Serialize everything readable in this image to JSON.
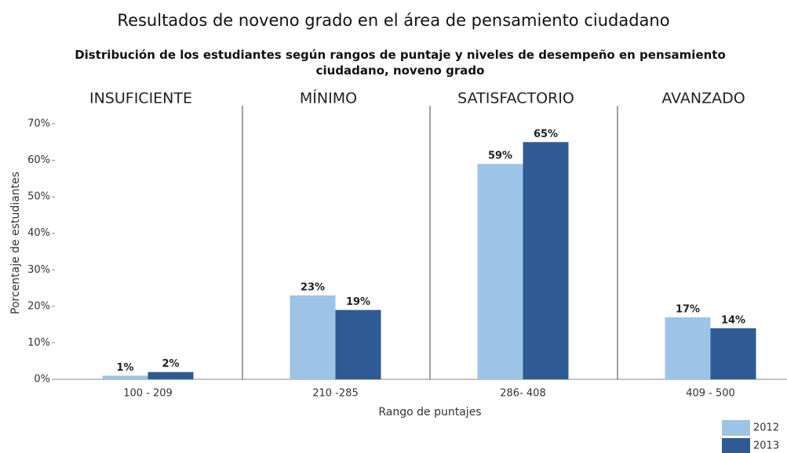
{
  "chart_data": {
    "type": "bar",
    "title": "Resultados de noveno grado en el área de pensamiento ciudadano",
    "subtitle": "Distribución de los estudiantes según rangos de puntaje y niveles de desempeño en pensamiento ciudadano, noveno grado",
    "levels": [
      "INSUFICIENTE",
      "MÍNIMO",
      "SATISFACTORIO",
      "AVANZADO"
    ],
    "x_label": "Rango de puntajes",
    "y_label": "Porcentaje de estudiantes",
    "categories": [
      "100 - 209",
      "210 -285",
      "286- 408",
      "409 - 500"
    ],
    "series": [
      {
        "name": "2012",
        "color": "#9dc3e6",
        "values": [
          1,
          23,
          59,
          17
        ],
        "value_labels": [
          "1%",
          "23%",
          "59%",
          "17%"
        ]
      },
      {
        "name": "2013",
        "color": "#2f5b95",
        "values": [
          2,
          19,
          65,
          14
        ],
        "value_labels": [
          "2%",
          "19%",
          "65%",
          "14%"
        ]
      }
    ],
    "ylim": [
      0,
      70
    ],
    "yticks": [
      {
        "value": 0,
        "label": "0%"
      },
      {
        "value": 10,
        "label": "10%"
      },
      {
        "value": 20,
        "label": "20%"
      },
      {
        "value": 30,
        "label": "30%"
      },
      {
        "value": 40,
        "label": "40%"
      },
      {
        "value": 50,
        "label": "50%"
      },
      {
        "value": 60,
        "label": "60%"
      },
      {
        "value": 70,
        "label": "70%"
      }
    ],
    "legend": "bottom-right"
  }
}
